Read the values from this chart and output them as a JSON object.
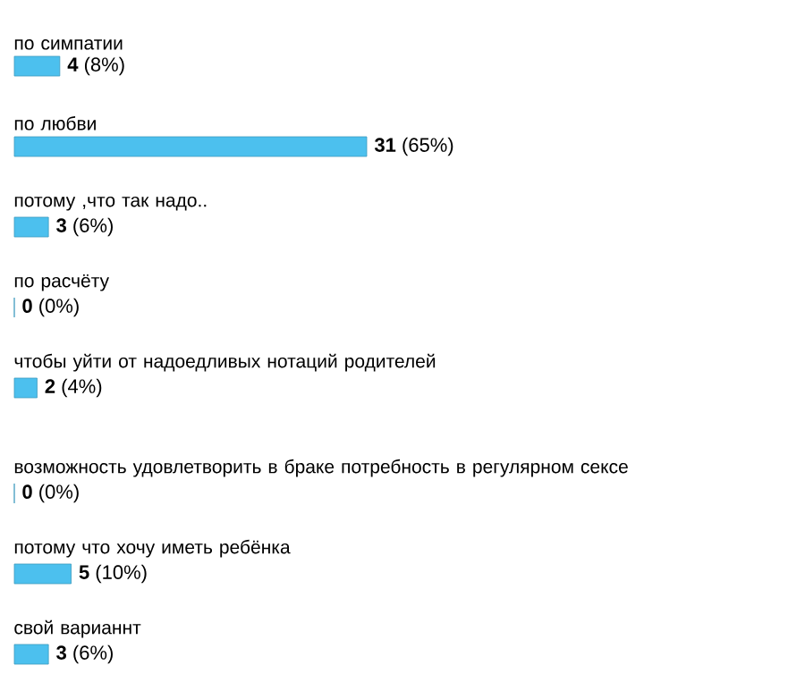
{
  "chart_data": {
    "type": "bar",
    "orientation": "horizontal",
    "categories": [
      "по симпатии",
      "по любви",
      "потому ,что так надо..",
      "по расчёту",
      "чтобы уйти от надоедливых нотаций родителей",
      "возможность удовлетворить в браке потребность в регулярном сексе",
      "потому что хочу иметь ребёнка",
      "свой варианнт"
    ],
    "values": [
      4,
      31,
      3,
      0,
      2,
      0,
      5,
      3
    ],
    "value_labels": [
      "**4** (8%)",
      "**31** (65%)",
      "**3** (6%)",
      "**0** (0%)",
      "**2** (4%)",
      "**0** (0%)",
      "**5** (10%)",
      "**3** (6%)"
    ],
    "color": "#4cc0ee"
  }
}
